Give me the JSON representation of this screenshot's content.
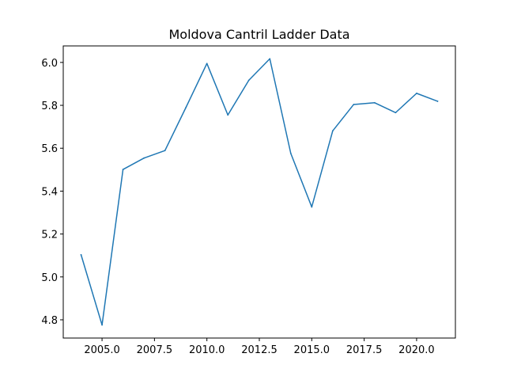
{
  "chart_data": {
    "type": "line",
    "title": "Moldova Cantril Ladder Data",
    "xlabel": "",
    "ylabel": "",
    "xlim": [
      2003.15,
      2021.85
    ],
    "ylim": [
      4.715,
      6.077
    ],
    "x_ticks": [
      2005.0,
      2007.5,
      2010.0,
      2012.5,
      2015.0,
      2017.5,
      2020.0
    ],
    "x_tick_labels": [
      "2005.0",
      "2007.5",
      "2010.0",
      "2012.5",
      "2015.0",
      "2017.5",
      "2020.0"
    ],
    "y_ticks": [
      4.8,
      5.0,
      5.2,
      5.4,
      5.6,
      5.8,
      6.0
    ],
    "y_tick_labels": [
      "4.8",
      "5.0",
      "5.2",
      "5.4",
      "5.6",
      "5.8",
      "6.0"
    ],
    "grid": false,
    "series": [
      {
        "color": "#1f77b4",
        "x": [
          2004,
          2005,
          2006,
          2007,
          2008,
          2009,
          2010,
          2011,
          2012,
          2013,
          2014,
          2015,
          2016,
          2017,
          2018,
          2019,
          2020,
          2021
        ],
        "y": [
          5.103,
          4.776,
          5.501,
          5.554,
          5.589,
          5.79,
          5.995,
          5.755,
          5.917,
          6.017,
          5.576,
          5.326,
          5.681,
          5.804,
          5.812,
          5.766,
          5.856,
          5.819
        ]
      }
    ]
  }
}
